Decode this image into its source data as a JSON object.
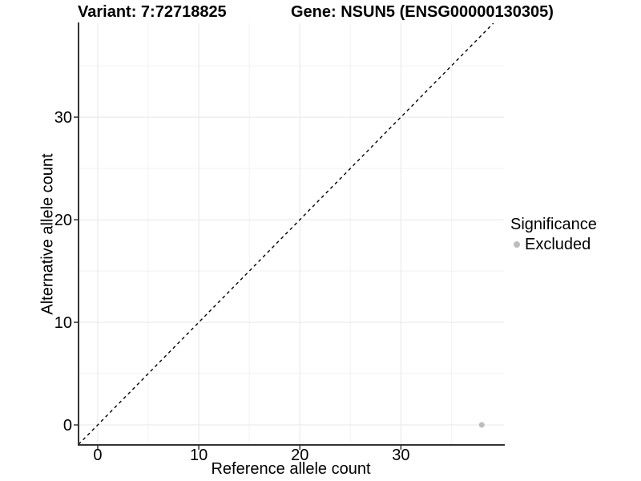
{
  "header": {
    "variant_title": "Variant: 7:72718825",
    "gene_title": "Gene: NSUN5 (ENSG00000130305)"
  },
  "axes": {
    "x_label": "Reference allele count",
    "y_label": "Alternative allele count"
  },
  "legend": {
    "title": "Significance",
    "items": [
      {
        "label": "Excluded",
        "color": "#bdbdbd"
      }
    ]
  },
  "chart_data": {
    "type": "scatter",
    "title": "Variant: 7:72718825",
    "subtitle": "Gene: NSUN5 (ENSG00000130305)",
    "xlabel": "Reference allele count",
    "ylabel": "Alternative allele count",
    "xlim": [
      -1.9,
      40.2
    ],
    "ylim": [
      -1.95,
      39.15
    ],
    "x_ticks": [
      0,
      10,
      20,
      30
    ],
    "y_ticks": [
      0,
      10,
      20,
      30
    ],
    "x_minor_ticks": [
      5,
      15,
      25,
      35
    ],
    "y_minor_ticks": [
      5,
      15,
      25,
      35
    ],
    "grid": true,
    "legend_position": "right",
    "reference_line": {
      "type": "identity",
      "style": "dashed",
      "color": "#000000"
    },
    "series": [
      {
        "name": "Excluded",
        "color": "#bdbdbd",
        "points": [
          [
            38,
            0
          ]
        ]
      }
    ]
  },
  "colors": {
    "background": "#ffffff",
    "grid_major": "#e7e7e7",
    "grid_minor": "#f2f2f2",
    "axis": "#333333",
    "text": "#000000"
  }
}
